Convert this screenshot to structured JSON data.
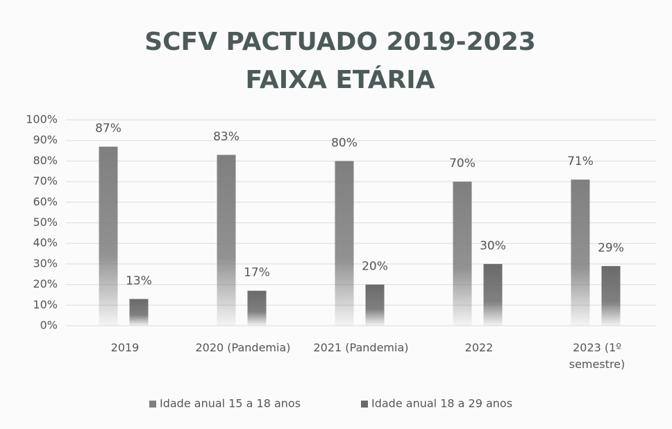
{
  "chart_data": {
    "type": "bar",
    "title": [
      "SCFV PACTUADO 2019-2023",
      "FAIXA ETÁRIA"
    ],
    "categories": [
      "2019",
      "2020 (Pandemia)",
      "2021 (Pandemia)",
      "2022",
      "2023 (1º semestre)"
    ],
    "series": [
      {
        "name": "Idade anual 15 a 18 anos",
        "color": "#7f7f7f",
        "values": [
          87,
          83,
          80,
          70,
          71
        ],
        "value_labels": [
          "87%",
          "83%",
          "80%",
          "70%",
          "71%"
        ]
      },
      {
        "name": "Idade anual 18 a 29 anos",
        "color": "#6a6a6a",
        "values": [
          13,
          17,
          20,
          30,
          29
        ],
        "value_labels": [
          "13%",
          "17%",
          "20%",
          "30%",
          "29%"
        ]
      }
    ],
    "ylim": [
      0,
      100
    ],
    "yticks": [
      {
        "value": 0,
        "label": "0%"
      },
      {
        "value": 10,
        "label": "10%"
      },
      {
        "value": 20,
        "label": "20%"
      },
      {
        "value": 30,
        "label": "30%"
      },
      {
        "value": 40,
        "label": "40%"
      },
      {
        "value": 50,
        "label": "50%"
      },
      {
        "value": 60,
        "label": "60%"
      },
      {
        "value": 70,
        "label": "70%"
      },
      {
        "value": 80,
        "label": "80%"
      },
      {
        "value": 90,
        "label": "90%"
      },
      {
        "value": 100,
        "label": "100%"
      }
    ],
    "grid": true,
    "legend": "bottom"
  }
}
